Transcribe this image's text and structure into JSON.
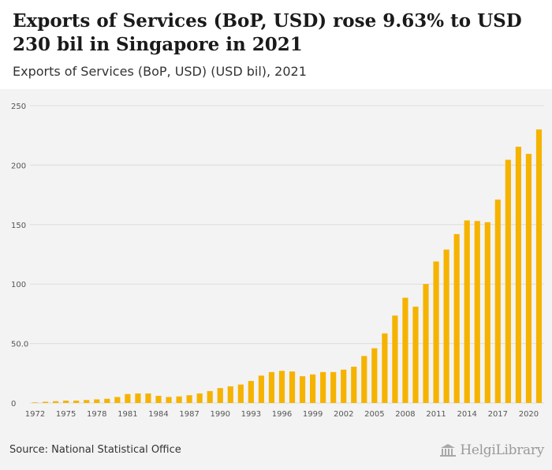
{
  "header": {
    "title": "Exports of Services (BoP, USD) rose 9.63% to USD 230 bil in Singapore in 2021",
    "subtitle": "Exports of Services (BoP, USD) (USD bil), 2021"
  },
  "footer": {
    "source": "Source: National Statistical Office",
    "logo_text": "HelgiLibrary"
  },
  "colors": {
    "bar": "#f5b300",
    "grid": "#dcdcdc",
    "axis_text": "#555555"
  },
  "chart_data": {
    "type": "bar",
    "title": "Exports of Services (BoP, USD) rose 9.63% to USD 230 bil in Singapore in 2021",
    "subtitle": "Exports of Services (BoP, USD) (USD bil), 2021",
    "xlabel": "",
    "ylabel": "",
    "ylim": [
      0,
      250
    ],
    "yticks": [
      0,
      50,
      100,
      150,
      200,
      250
    ],
    "ytick_labels": [
      "0",
      "50.0",
      "100",
      "150",
      "200",
      "250"
    ],
    "xtick_labels": [
      "1972",
      "1975",
      "1978",
      "1981",
      "1984",
      "1987",
      "1990",
      "1993",
      "1996",
      "1999",
      "2002",
      "2005",
      "2008",
      "2011",
      "2014",
      "2017",
      "2020"
    ],
    "grid": true,
    "legend": "none",
    "categories": [
      "1972",
      "1973",
      "1974",
      "1975",
      "1976",
      "1977",
      "1978",
      "1979",
      "1980",
      "1981",
      "1982",
      "1983",
      "1984",
      "1985",
      "1986",
      "1987",
      "1988",
      "1989",
      "1990",
      "1991",
      "1992",
      "1993",
      "1994",
      "1995",
      "1996",
      "1997",
      "1998",
      "1999",
      "2000",
      "2001",
      "2002",
      "2003",
      "2004",
      "2005",
      "2006",
      "2007",
      "2008",
      "2009",
      "2010",
      "2011",
      "2012",
      "2013",
      "2014",
      "2015",
      "2016",
      "2017",
      "2018",
      "2019",
      "2020",
      "2021"
    ],
    "values": [
      0.5,
      1.0,
      1.5,
      2.0,
      2.0,
      2.5,
      3.0,
      3.5,
      5.0,
      7.5,
      8.0,
      8.0,
      6.0,
      5.0,
      5.5,
      6.5,
      8.0,
      10.0,
      12.5,
      14.0,
      15.5,
      18.5,
      23.0,
      26.0,
      27.0,
      26.5,
      22.5,
      24.0,
      26.0,
      26.0,
      28.0,
      30.5,
      39.5,
      46.0,
      58.5,
      73.5,
      88.5,
      81.0,
      100.0,
      119.0,
      129.0,
      142.0,
      153.5,
      153.0,
      152.0,
      171.0,
      204.5,
      215.5,
      209.5,
      230.0
    ]
  }
}
